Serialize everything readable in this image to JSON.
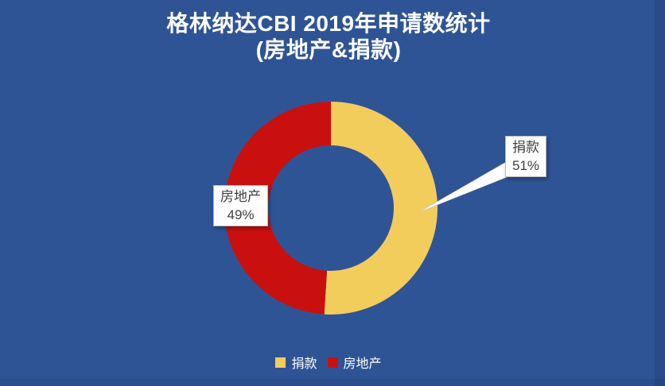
{
  "frame": {
    "background_color": "#2F5496",
    "border_color": "#CCD4EA"
  },
  "chart_data": {
    "type": "pie",
    "subtype": "donut",
    "title": "格林纳达CBI 2019年申请数统计",
    "subtitle": "(房地产&捐款)",
    "slices": [
      {
        "label": "捐款",
        "value": 51,
        "display": "51%",
        "color": "#F2CD5C"
      },
      {
        "label": "房地产",
        "value": 49,
        "display": "49%",
        "color": "#C9100E"
      }
    ],
    "start_angle_deg": 0,
    "direction": "clockwise",
    "inner_radius_ratio": 0.59,
    "legend_position": "bottom",
    "data_labels_show": "label_and_percent",
    "callouts": [
      {
        "slice": "捐款",
        "text": "捐款 51%",
        "has_leader_line": true
      },
      {
        "slice": "房地产",
        "text": "房地产 49%",
        "has_leader_line": false
      }
    ]
  }
}
